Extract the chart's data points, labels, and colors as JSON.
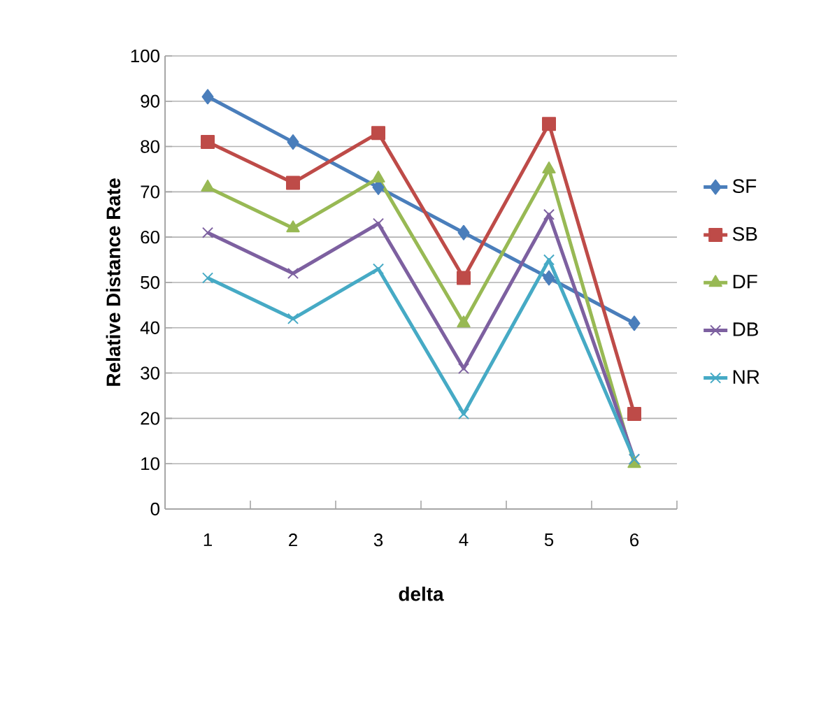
{
  "chart_data": {
    "type": "line",
    "xlabel": "delta",
    "ylabel": "Relative Distance Rate",
    "categories": [
      "1",
      "2",
      "3",
      "4",
      "5",
      "6"
    ],
    "ylim": [
      0,
      100
    ],
    "yticks": [
      0,
      10,
      20,
      30,
      40,
      50,
      60,
      70,
      80,
      90,
      100
    ],
    "grid": "y",
    "legend": "right",
    "series": [
      {
        "name": "SF",
        "color": "#4a7ebb",
        "marker": "diamond",
        "values": [
          91,
          81,
          71,
          61,
          51,
          41
        ]
      },
      {
        "name": "SB",
        "color": "#be4b48",
        "marker": "square",
        "values": [
          81,
          72,
          83,
          51,
          85,
          21
        ]
      },
      {
        "name": "DF",
        "color": "#98b954",
        "marker": "triangle",
        "values": [
          71,
          62,
          73,
          41,
          75,
          10
        ]
      },
      {
        "name": "DB",
        "color": "#7d60a0",
        "marker": "cross",
        "values": [
          61,
          52,
          63,
          31,
          65,
          11
        ]
      },
      {
        "name": "NR",
        "color": "#46aac5",
        "marker": "cross",
        "values": [
          51,
          42,
          53,
          21,
          55,
          11
        ]
      }
    ]
  }
}
